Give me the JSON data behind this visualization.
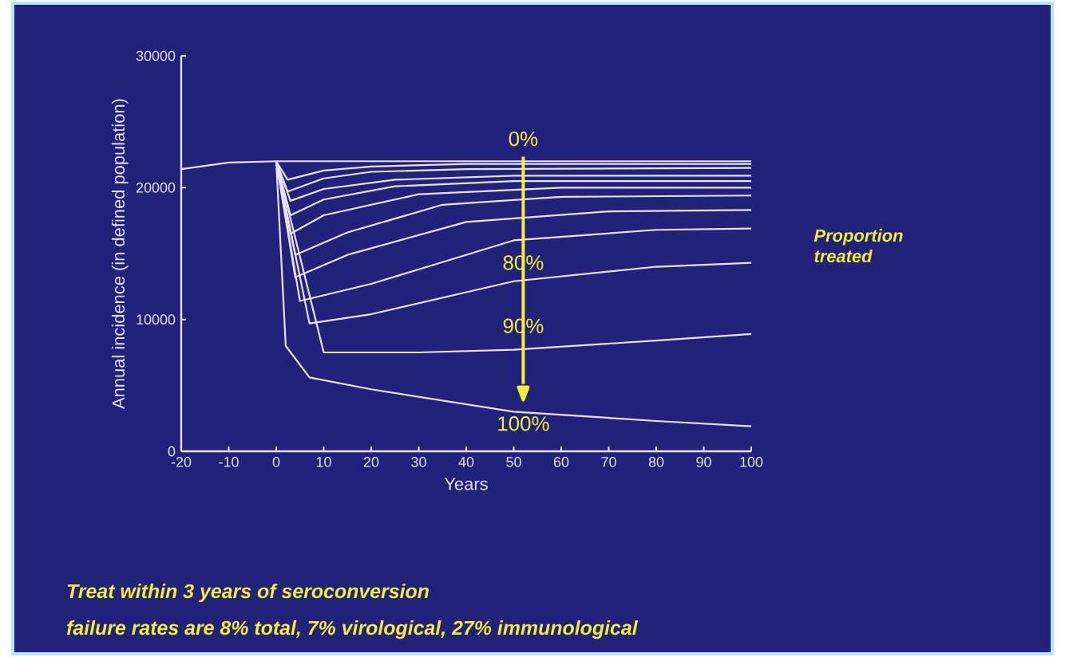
{
  "chart_data": {
    "type": "line",
    "xlabel": "Years",
    "ylabel": "Annual incidence (in defined population)",
    "xlim": [
      -20,
      100
    ],
    "xticks": [
      -20,
      -10,
      0,
      10,
      20,
      30,
      40,
      50,
      60,
      70,
      80,
      90,
      100
    ],
    "ylim": [
      0,
      30000
    ],
    "yticks": [
      0,
      10000,
      20000,
      30000
    ],
    "grid": false,
    "legend": false,
    "marker": "none",
    "line_style": "solid",
    "series": [
      {
        "color": "#e4e4f2",
        "x": [
          -20,
          -10,
          0,
          100
        ],
        "values": [
          21400,
          21900,
          22000,
          22000
        ]
      },
      {
        "color": "#e4e4f2",
        "x": [
          0,
          2.4,
          10,
          20,
          40,
          100
        ],
        "values": [
          22000,
          20600,
          21300,
          21600,
          21800,
          21800
        ]
      },
      {
        "color": "#e4e4f2",
        "x": [
          0,
          2.4,
          10,
          20,
          40,
          100
        ],
        "values": [
          22000,
          19700,
          20700,
          21200,
          21400,
          21500
        ]
      },
      {
        "color": "#e4e4f2",
        "x": [
          0,
          3,
          10,
          25,
          50,
          100
        ],
        "values": [
          22000,
          19000,
          19900,
          20600,
          20900,
          20900
        ]
      },
      {
        "color": "#e4e4f2",
        "x": [
          0,
          3,
          10,
          25,
          50,
          100
        ],
        "values": [
          22000,
          17900,
          19100,
          20100,
          20500,
          20500
        ]
      },
      {
        "color": "#e4e4f2",
        "x": [
          0,
          3,
          10,
          30,
          60,
          100
        ],
        "values": [
          22000,
          16500,
          17900,
          19500,
          20000,
          20000
        ]
      },
      {
        "color": "#e4e4f2",
        "x": [
          0,
          4,
          15,
          35,
          60,
          100
        ],
        "values": [
          22000,
          14900,
          16600,
          18700,
          19300,
          19400
        ]
      },
      {
        "color": "#e4e4f2",
        "x": [
          0,
          4,
          15,
          40,
          70,
          100
        ],
        "values": [
          22000,
          13200,
          14900,
          17400,
          18200,
          18300
        ]
      },
      {
        "color": "#e4e4f2",
        "x": [
          0,
          5,
          20,
          50,
          80,
          100
        ],
        "values": [
          22000,
          11400,
          12700,
          16000,
          16800,
          16900
        ]
      },
      {
        "color": "#e4e4f2",
        "x": [
          0,
          7,
          20,
          50,
          80,
          100
        ],
        "values": [
          22000,
          9700,
          10400,
          12900,
          14000,
          14300
        ]
      },
      {
        "color": "#e4e4f2",
        "x": [
          0,
          10,
          30,
          50,
          80,
          100
        ],
        "values": [
          22000,
          7500,
          7500,
          7700,
          8400,
          8900
        ]
      },
      {
        "color": "#e4e4f2",
        "x": [
          0,
          2,
          7,
          20,
          50,
          80,
          100
        ],
        "values": [
          22000,
          8000,
          5600,
          4700,
          3000,
          2300,
          1900
        ]
      }
    ],
    "annotations": [
      {
        "text": "0%",
        "x": 52,
        "y": 22000
      },
      "80%",
      "90%",
      "100%",
      "Proportion treated",
      "Treat within 3 years of seroconversion",
      "failure rates are 8% total, 7% virological, 27% immunological"
    ]
  }
}
